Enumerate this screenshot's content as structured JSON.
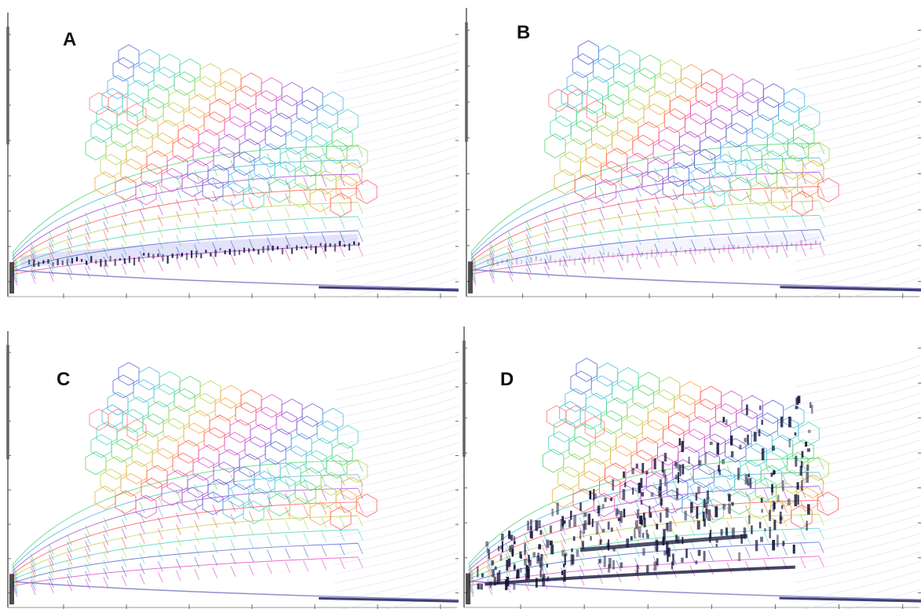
{
  "panels": [
    {
      "id": "a",
      "label": "A",
      "signal": "baseline"
    },
    {
      "id": "b",
      "label": "B",
      "signal": "faint"
    },
    {
      "id": "c",
      "label": "C",
      "signal": "none"
    },
    {
      "id": "d",
      "label": "D",
      "signal": "dense"
    }
  ],
  "palette": {
    "frame": "#333333",
    "overlay_colors": [
      "#ff4a4a",
      "#e040c0",
      "#9a3fd0",
      "#4a55d0",
      "#3aaee0",
      "#39d0b8",
      "#40d060",
      "#b0d040",
      "#f0a030"
    ],
    "signal": "#14143a",
    "halo": "#3030d0"
  }
}
